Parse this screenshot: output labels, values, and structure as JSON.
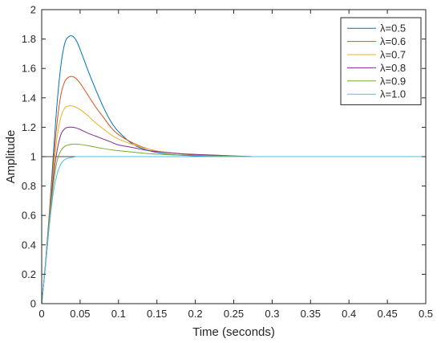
{
  "chart_data": {
    "type": "line",
    "title": "",
    "xlabel": "Time (seconds)",
    "ylabel": "Amplitude",
    "xlim": [
      0,
      0.5
    ],
    "ylim": [
      0,
      2
    ],
    "xticks": [
      "0",
      "0.05",
      "0.1",
      "0.15",
      "0.2",
      "0.25",
      "0.3",
      "0.35",
      "0.4",
      "0.45",
      "0.5"
    ],
    "yticks": [
      "0",
      "0.2",
      "0.4",
      "0.6",
      "0.8",
      "1",
      "1.2",
      "1.4",
      "1.6",
      "1.8",
      "2"
    ],
    "grid": false,
    "legend_position": "top-right",
    "reference_line": {
      "y": 1,
      "color": "#4a4a4a"
    },
    "x": [
      0,
      0.005,
      0.01,
      0.015,
      0.02,
      0.025,
      0.03,
      0.035,
      0.04,
      0.045,
      0.05,
      0.06,
      0.07,
      0.08,
      0.09,
      0.1,
      0.12,
      0.14,
      0.16,
      0.18,
      0.2,
      0.225,
      0.25,
      0.275,
      0.3,
      0.35,
      0.4,
      0.45,
      0.5
    ],
    "series": [
      {
        "name": "λ=0.5",
        "color": "#0072BD",
        "values": [
          0,
          0.28,
          0.62,
          1.0,
          1.36,
          1.62,
          1.77,
          1.815,
          1.82,
          1.79,
          1.73,
          1.59,
          1.46,
          1.34,
          1.24,
          1.17,
          1.08,
          1.04,
          1.02,
          1.01,
          1.005,
          1.0,
          1.0,
          1.0,
          1.0,
          1.0,
          1.0,
          1.0,
          1.0
        ]
      },
      {
        "name": "λ=0.6",
        "color": "#D95319",
        "values": [
          0,
          0.27,
          0.6,
          0.94,
          1.23,
          1.42,
          1.51,
          1.54,
          1.545,
          1.53,
          1.5,
          1.42,
          1.34,
          1.27,
          1.2,
          1.15,
          1.09,
          1.05,
          1.03,
          1.02,
          1.01,
          1.005,
          1.0,
          1.0,
          1.0,
          1.0,
          1.0,
          1.0,
          1.0
        ]
      },
      {
        "name": "λ=0.7",
        "color": "#EDB120",
        "values": [
          0,
          0.27,
          0.58,
          0.89,
          1.13,
          1.27,
          1.33,
          1.345,
          1.345,
          1.335,
          1.32,
          1.28,
          1.23,
          1.19,
          1.15,
          1.12,
          1.08,
          1.05,
          1.03,
          1.02,
          1.015,
          1.01,
          1.005,
          1.0,
          1.0,
          1.0,
          1.0,
          1.0,
          1.0
        ]
      },
      {
        "name": "λ=0.8",
        "color": "#7E2F8E",
        "values": [
          0,
          0.27,
          0.56,
          0.85,
          1.04,
          1.15,
          1.19,
          1.2,
          1.2,
          1.195,
          1.185,
          1.16,
          1.14,
          1.12,
          1.1,
          1.08,
          1.06,
          1.04,
          1.03,
          1.02,
          1.015,
          1.01,
          1.005,
          1.0,
          1.0,
          1.0,
          1.0,
          1.0,
          1.0
        ]
      },
      {
        "name": "λ=0.9",
        "color": "#77AC30",
        "values": [
          0,
          0.26,
          0.55,
          0.8,
          0.97,
          1.04,
          1.07,
          1.08,
          1.085,
          1.085,
          1.083,
          1.075,
          1.065,
          1.055,
          1.047,
          1.04,
          1.03,
          1.02,
          1.015,
          1.01,
          1.008,
          1.005,
          1.003,
          1.0,
          1.0,
          1.0,
          1.0,
          1.0,
          1.0
        ]
      },
      {
        "name": "λ=1.0",
        "color": "#4DBEEE",
        "values": [
          0,
          0.26,
          0.53,
          0.75,
          0.88,
          0.95,
          0.98,
          0.99,
          0.995,
          1.0,
          1.0,
          1.0,
          1.0,
          1.0,
          1.0,
          1.0,
          1.0,
          1.0,
          1.0,
          1.0,
          1.0,
          1.0,
          1.0,
          1.0,
          1.0,
          1.0,
          1.0,
          1.0,
          1.0
        ]
      }
    ]
  }
}
